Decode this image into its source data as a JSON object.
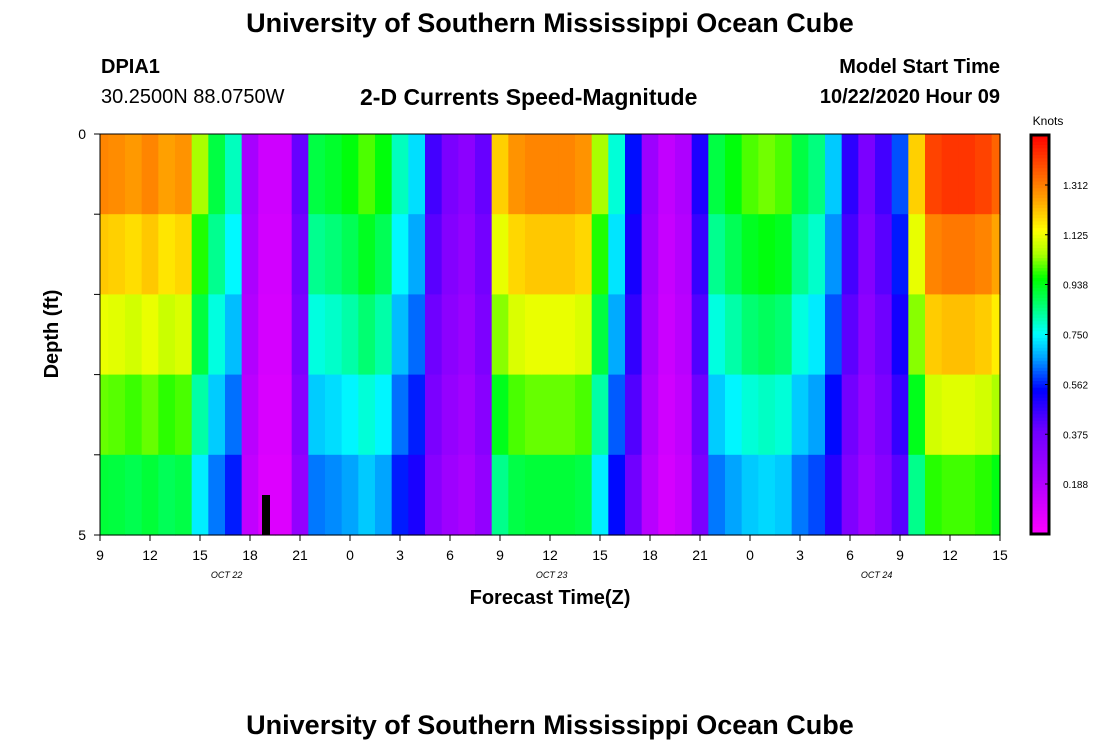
{
  "header": {
    "title": "University of Southern Mississippi Ocean Cube",
    "station": "DPIA1",
    "coords": "30.2500N 88.0750W",
    "subtitle": "2-D Currents Speed-Magnitude",
    "start_label": "Model Start Time",
    "start_value": "10/22/2020 Hour 09"
  },
  "footer": {
    "title": "University of Southern Mississippi Ocean Cube"
  },
  "chart_data": {
    "type": "heatmap",
    "xlabel": "Forecast Time(Z)",
    "ylabel": "Depth (ft)",
    "x_tick_labels": [
      "9",
      "12",
      "15",
      "18",
      "21",
      "0",
      "3",
      "6",
      "9",
      "12",
      "15",
      "18",
      "21",
      "0",
      "3",
      "6",
      "9",
      "12",
      "15"
    ],
    "y_tick_labels": [
      "0",
      "5"
    ],
    "ylim": [
      0,
      5
    ],
    "date_labels": [
      {
        "label": "OCT  22",
        "at_hour": 16
      },
      {
        "label": "OCT  23",
        "at_hour": 35.5
      },
      {
        "label": "OCT  24",
        "at_hour": 55
      }
    ],
    "x_hours_range": [
      9,
      63
    ],
    "depth_levels": 5,
    "colorbar": {
      "unit": "Knots",
      "range": [
        0,
        1.5
      ],
      "ticks": [
        "1.312",
        "1.125",
        "0.938",
        "0.750",
        "0.562",
        "0.375",
        "0.188"
      ],
      "tick_values": [
        1.312,
        1.125,
        0.938,
        0.75,
        0.562,
        0.375,
        0.188
      ]
    },
    "surface_speed_profile": [
      [
        9,
        1.3
      ],
      [
        10,
        1.29
      ],
      [
        11,
        1.27
      ],
      [
        12,
        1.3
      ],
      [
        13,
        1.26
      ],
      [
        14,
        1.28
      ],
      [
        15,
        1.05
      ],
      [
        16,
        0.9
      ],
      [
        17,
        0.8
      ],
      [
        18,
        0.22
      ],
      [
        19,
        0.12
      ],
      [
        20,
        0.12
      ],
      [
        21,
        0.4
      ],
      [
        22,
        0.9
      ],
      [
        23,
        0.92
      ],
      [
        24,
        0.95
      ],
      [
        25,
        1.0
      ],
      [
        26,
        0.95
      ],
      [
        27,
        0.8
      ],
      [
        28,
        0.72
      ],
      [
        29,
        0.45
      ],
      [
        30,
        0.35
      ],
      [
        31,
        0.3
      ],
      [
        32,
        0.4
      ],
      [
        33,
        1.2
      ],
      [
        34,
        1.28
      ],
      [
        35,
        1.3
      ],
      [
        36,
        1.3
      ],
      [
        37,
        1.3
      ],
      [
        38,
        1.28
      ],
      [
        39,
        1.05
      ],
      [
        40,
        0.78
      ],
      [
        41,
        0.55
      ],
      [
        42,
        0.25
      ],
      [
        43,
        0.15
      ],
      [
        44,
        0.2
      ],
      [
        45,
        0.5
      ],
      [
        46,
        0.9
      ],
      [
        47,
        0.95
      ],
      [
        48,
        1.0
      ],
      [
        49,
        1.02
      ],
      [
        50,
        1.0
      ],
      [
        51,
        0.9
      ],
      [
        52,
        0.85
      ],
      [
        53,
        0.7
      ],
      [
        54,
        0.48
      ],
      [
        55,
        0.35
      ],
      [
        56,
        0.45
      ],
      [
        57,
        0.6
      ],
      [
        58,
        1.2
      ],
      [
        59,
        1.4
      ],
      [
        60,
        1.42
      ],
      [
        61,
        1.42
      ],
      [
        62,
        1.4
      ],
      [
        63,
        1.35
      ]
    ],
    "depth_multipliers": [
      1.0,
      0.93,
      0.86,
      0.78,
      0.7
    ]
  }
}
